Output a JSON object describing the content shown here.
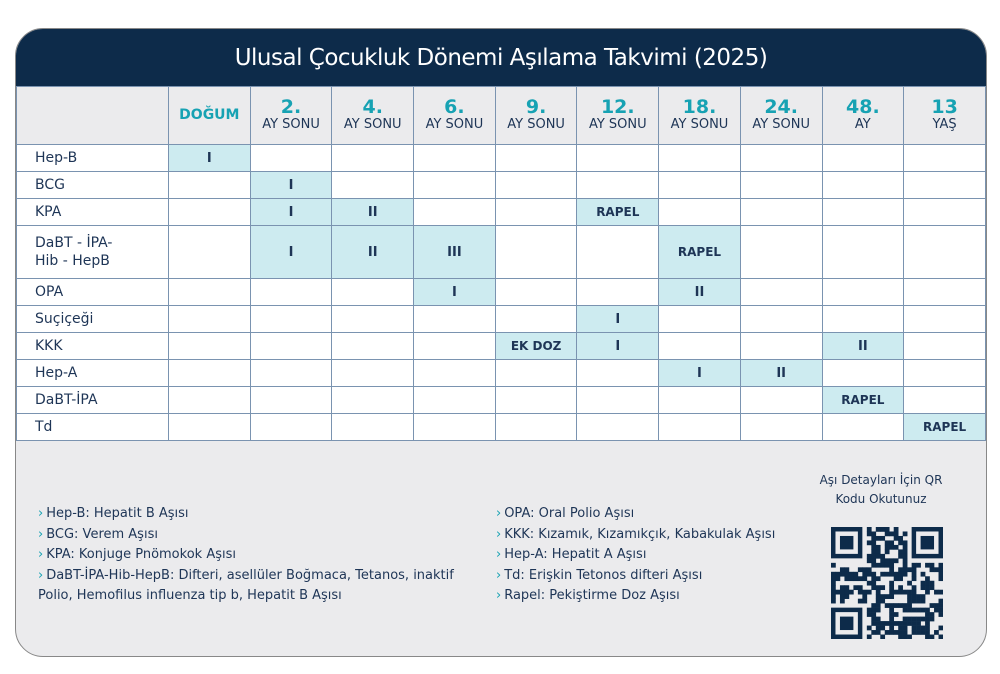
{
  "title": "Ulusal Çocukluk Dönemi Aşılama Takvimi (2025)",
  "columns": [
    {
      "label": "DOĞUM"
    },
    {
      "num": "2.",
      "sub": "AY SONU"
    },
    {
      "num": "4.",
      "sub": "AY SONU"
    },
    {
      "num": "6.",
      "sub": "AY SONU"
    },
    {
      "num": "9.",
      "sub": "AY SONU"
    },
    {
      "num": "12.",
      "sub": "AY SONU"
    },
    {
      "num": "18.",
      "sub": "AY SONU"
    },
    {
      "num": "24.",
      "sub": "AY SONU"
    },
    {
      "num": "48.",
      "sub": "AY"
    },
    {
      "num": "13",
      "sub": "YAŞ"
    }
  ],
  "rows": [
    {
      "name": "Hep-B",
      "cells": [
        "I",
        "",
        "",
        "",
        "",
        "",
        "",
        "",
        "",
        ""
      ]
    },
    {
      "name": "BCG",
      "cells": [
        "",
        "I",
        "",
        "",
        "",
        "",
        "",
        "",
        "",
        ""
      ]
    },
    {
      "name": "KPA",
      "cells": [
        "",
        "I",
        "II",
        "",
        "",
        "RAPEL",
        "",
        "",
        "",
        ""
      ]
    },
    {
      "name": "DaBT - İPA-\nHib - HepB",
      "cells": [
        "",
        "I",
        "II",
        "III",
        "",
        "",
        "RAPEL",
        "",
        "",
        ""
      ]
    },
    {
      "name": "OPA",
      "cells": [
        "",
        "",
        "",
        "I",
        "",
        "",
        "II",
        "",
        "",
        ""
      ]
    },
    {
      "name": "Suçiçeği",
      "cells": [
        "",
        "",
        "",
        "",
        "",
        "I",
        "",
        "",
        "",
        ""
      ]
    },
    {
      "name": "KKK",
      "cells": [
        "",
        "",
        "",
        "",
        "EK DOZ",
        "I",
        "",
        "",
        "II",
        ""
      ]
    },
    {
      "name": "Hep-A",
      "cells": [
        "",
        "",
        "",
        "",
        "",
        "",
        "I",
        "II",
        "",
        ""
      ]
    },
    {
      "name": "DaBT-İPA",
      "cells": [
        "",
        "",
        "",
        "",
        "",
        "",
        "",
        "",
        "RAPEL",
        ""
      ]
    },
    {
      "name": "Td",
      "cells": [
        "",
        "",
        "",
        "",
        "",
        "",
        "",
        "",
        "",
        "RAPEL"
      ]
    }
  ],
  "legend_left": [
    "Hep-B: Hepatit B Aşısı",
    "BCG: Verem Aşısı",
    "KPA: Konjuge Pnömokok Aşısı",
    "DaBT-İPA-Hib-HepB: Difteri, asellüler Boğmaca, Tetanos, inaktif Polio, Hemofilus influenza tip b, Hepatit B Aşısı"
  ],
  "legend_right": [
    "OPA: Oral Polio Aşısı",
    "KKK: Kızamık, Kızamıkçık, Kabakulak Aşısı",
    "Hep-A: Hepatit A Aşısı",
    "Td: Erişkin Tetonos difteri Aşısı",
    "Rapel: Pekiştirme Doz Aşısı"
  ],
  "qr_text": "Aşı Detayları İçin QR Kodu Okutunuz",
  "colors": {
    "navy": "#0d2b4a",
    "accent": "#17a2b3",
    "filled": "#cdebf0"
  }
}
